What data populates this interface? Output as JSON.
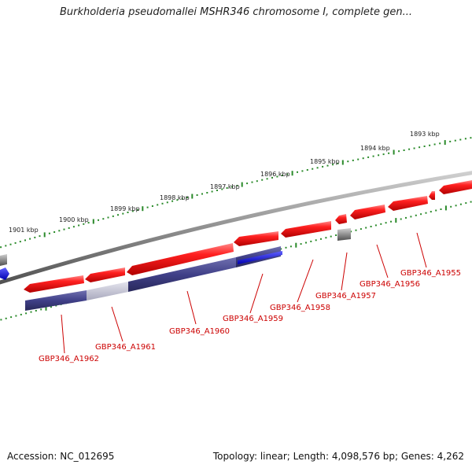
{
  "title": "Burkholderia pseudomallei MSHR346 chromosome I, complete gen...",
  "footer": {
    "accession": "Accession: NC_012695",
    "summary": "Topology: linear; Length: 4,098,576 bp; Genes: 4,262"
  },
  "ruler": [
    {
      "label": "1893 kbp"
    },
    {
      "label": "1894 kbp"
    },
    {
      "label": "1895 kbp"
    },
    {
      "label": "1896 kbp"
    },
    {
      "label": "1897 kbp"
    },
    {
      "label": "1898 kbp"
    },
    {
      "label": "1899 kbp"
    },
    {
      "label": "1900 kbp"
    },
    {
      "label": "1901 kbp"
    }
  ],
  "genes": [
    {
      "label": "GBP346_A1955"
    },
    {
      "label": "GBP346_A1956"
    },
    {
      "label": "GBP346_A1957"
    },
    {
      "label": "GBP346_A1958"
    },
    {
      "label": "GBP346_A1959"
    },
    {
      "label": "GBP346_A1960"
    },
    {
      "label": "GBP346_A1961"
    },
    {
      "label": "GBP346_A1962"
    }
  ],
  "colors": {
    "gene": "#ee1111",
    "feature": "#3a3a8a",
    "feature_light": "#b8b8cc",
    "feature_blue": "#0000ee",
    "backbone": "#808080",
    "tick": "#2a8a2a",
    "label": "#cc0000"
  }
}
